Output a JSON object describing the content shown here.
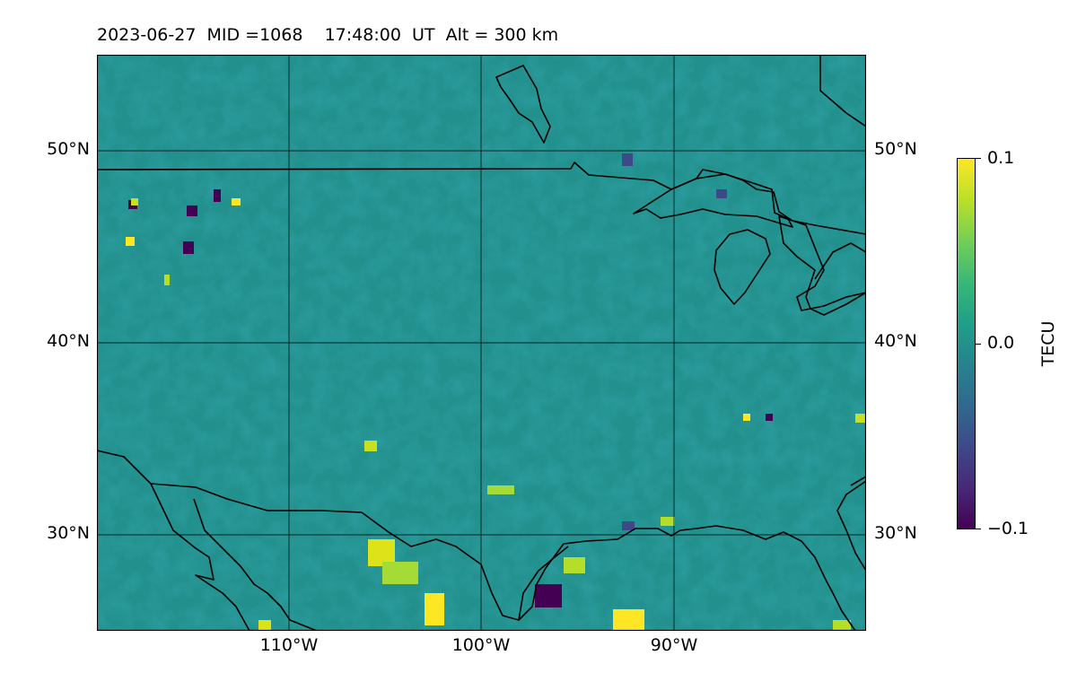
{
  "title": "2023-06-27  MID =1068    17:48:00  UT  Alt = 300 km",
  "map": {
    "lon_range": [
      -120,
      -80
    ],
    "lat_range": [
      25,
      55
    ],
    "lat_ticks": [
      {
        "value": 50,
        "label": "50°N"
      },
      {
        "value": 40,
        "label": "40°N"
      },
      {
        "value": 30,
        "label": "30°N"
      }
    ],
    "lon_ticks": [
      {
        "value": -110,
        "label": "110°W"
      },
      {
        "value": -100,
        "label": "100°W"
      },
      {
        "value": -90,
        "label": "90°W"
      }
    ],
    "gridlines": true,
    "base_color": "#22908c"
  },
  "colorbar": {
    "label": "TECU",
    "min": -0.1,
    "max": 0.1,
    "ticks": [
      {
        "value": 0.1,
        "label": "0.1"
      },
      {
        "value": 0.0,
        "label": "0.0"
      },
      {
        "value": -0.1,
        "label": "−0.1"
      }
    ],
    "colormap": "viridis"
  }
}
